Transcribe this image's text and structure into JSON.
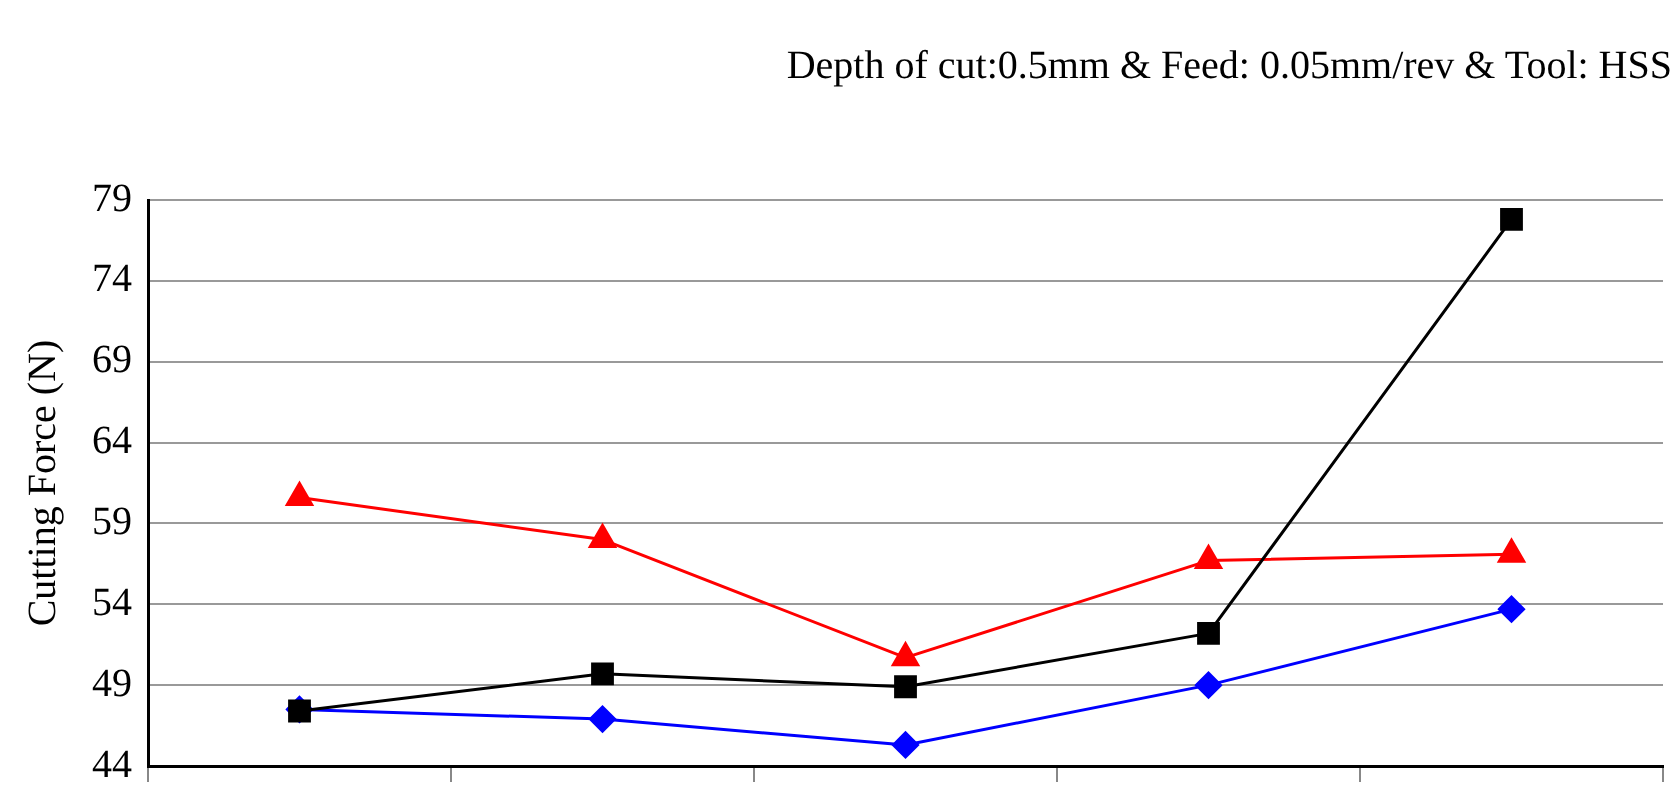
{
  "chart_data": {
    "type": "line",
    "title": "Depth of cut:0.5mm & Feed: 0.05mm/rev & Tool: HSS",
    "ylabel": "Cutting Force (N)",
    "categories": [
      null,
      null,
      null,
      null,
      null
    ],
    "series": [
      {
        "color": "#0000ff",
        "marker": "diamond",
        "values": [
          47.5,
          46.9,
          45.3,
          49.0,
          53.7
        ]
      },
      {
        "color": "#ff0000",
        "marker": "triangle",
        "values": [
          60.6,
          58.0,
          50.7,
          56.7,
          57.1
        ]
      },
      {
        "color": "#000000",
        "marker": "square",
        "values": [
          47.4,
          49.7,
          48.9,
          52.2,
          77.8
        ]
      }
    ],
    "ylim": [
      44,
      79
    ],
    "yticks": [
      44,
      49,
      54,
      59,
      64,
      69,
      74,
      79
    ],
    "grid": "y",
    "legend": false,
    "tick_labels": "y"
  }
}
